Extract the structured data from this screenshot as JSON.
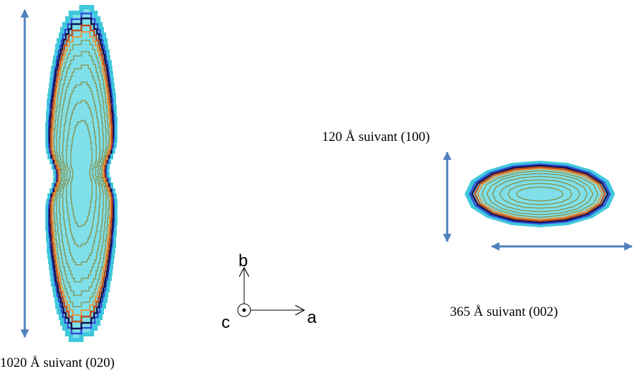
{
  "labels": {
    "length_020": "1020 Å suivant (020)",
    "length_100": "120 Å suivant (100)",
    "length_002": "365 Å suivant (002)"
  },
  "axes": {
    "b": "b",
    "a": "a",
    "c": "c"
  }
}
